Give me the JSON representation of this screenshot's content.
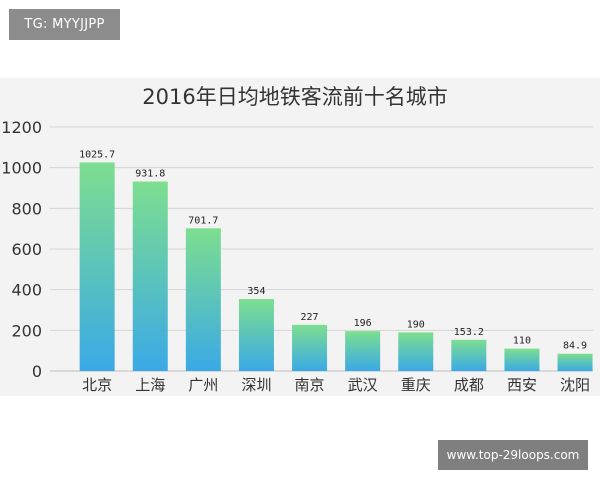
{
  "overlay": {
    "tag_label": "TG: MYYJJPP",
    "url_label": "www.top-29loops.com"
  },
  "chart_data": {
    "type": "bar",
    "title": "2016年日均地铁客流前十名城市",
    "categories": [
      "北京",
      "上海",
      "广州",
      "深圳",
      "南京",
      "武汉",
      "重庆",
      "成都",
      "西安",
      "沈阳"
    ],
    "values": [
      1025.7,
      931.8,
      701.7,
      354,
      227,
      196,
      190,
      153.2,
      110,
      84.9
    ],
    "value_labels": [
      "1025.7",
      "931.8",
      "701.7",
      "354",
      "227",
      "196",
      "190",
      "153.2",
      "110",
      "84.9"
    ],
    "ylim": [
      0,
      1200
    ],
    "yticks": [
      0,
      200,
      400,
      600,
      800,
      1000,
      1200
    ],
    "grid": true,
    "colors": {
      "bar_top": "#7dde8f",
      "bar_bottom": "#3aa9e6",
      "grid": "#d4d4d4",
      "background": "#f3f3f3"
    }
  }
}
